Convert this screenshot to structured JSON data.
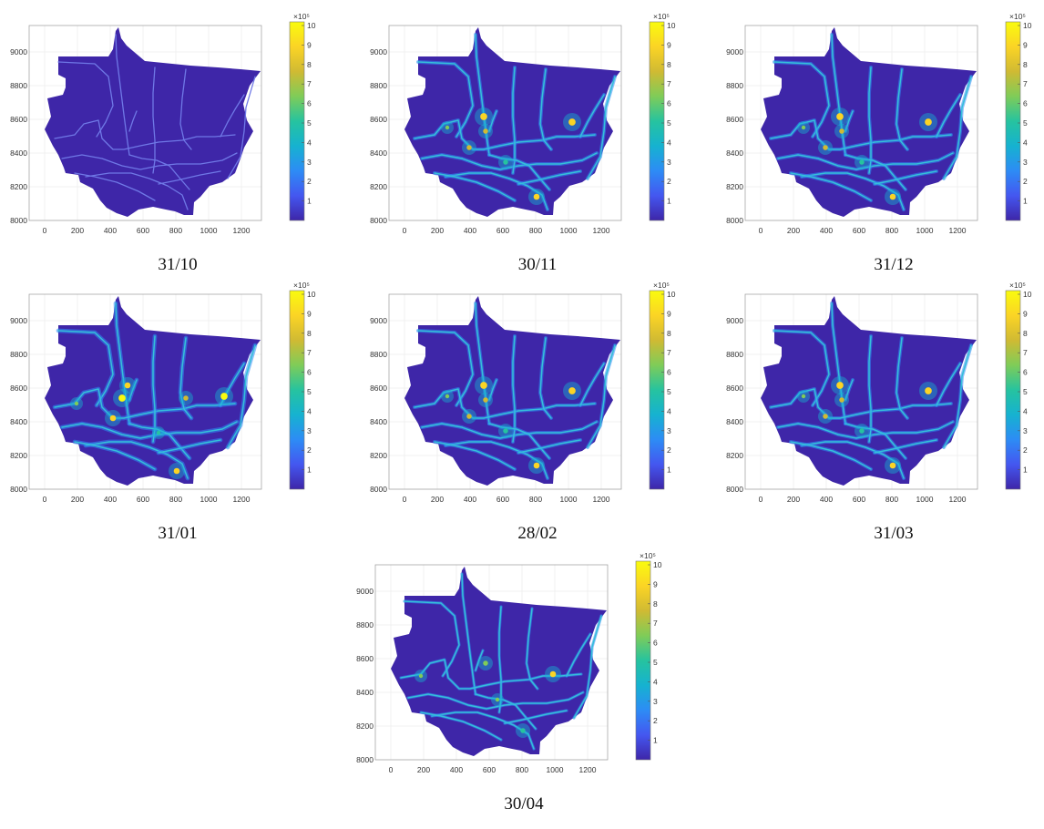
{
  "figure": {
    "x_ticks": [
      "0",
      "200",
      "400",
      "600",
      "800",
      "1000",
      "1200"
    ],
    "y_ticks": [
      "8000",
      "8200",
      "8400",
      "8600",
      "8800",
      "9000"
    ],
    "colorbar": {
      "exponent_label": "×10⁵",
      "ticks": [
        "1",
        "2",
        "3",
        "4",
        "5",
        "6",
        "7",
        "8",
        "9",
        "10"
      ],
      "colormap": "parula",
      "colors": [
        "#3e26a8",
        "#4457f0",
        "#2d8cf5",
        "#16b2d0",
        "#26c39f",
        "#7fcc58",
        "#d0ba33",
        "#fbd425",
        "#f9fb0e"
      ]
    }
  },
  "panels": [
    {
      "caption": "31/10",
      "intensity": 0
    },
    {
      "caption": "30/11",
      "intensity": 2
    },
    {
      "caption": "31/12",
      "intensity": 2
    },
    {
      "caption": "31/01",
      "intensity": 3
    },
    {
      "caption": "28/02",
      "intensity": 2
    },
    {
      "caption": "31/03",
      "intensity": 2
    },
    {
      "caption": "30/04",
      "intensity": 1
    }
  ]
}
